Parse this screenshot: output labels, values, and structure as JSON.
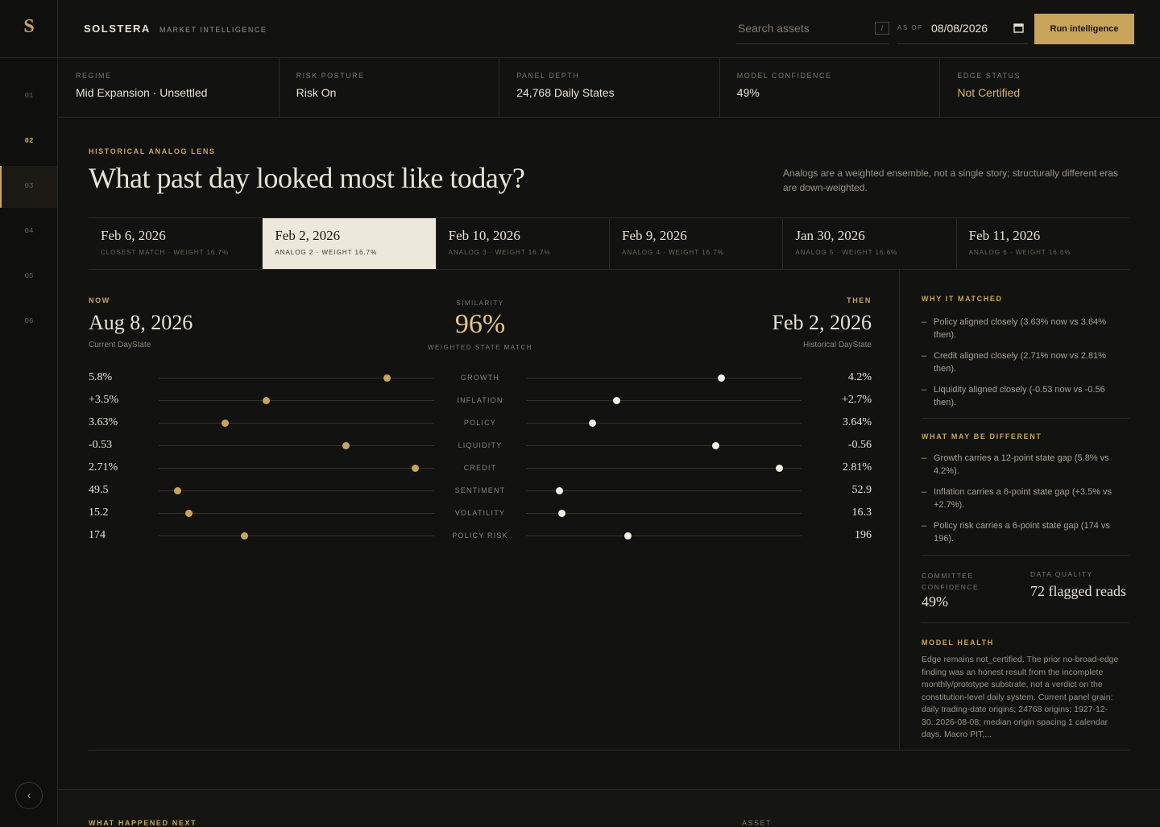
{
  "brand": {
    "logo": "S",
    "name": "SOLSTERA",
    "tagline": "MARKET INTELLIGENCE"
  },
  "header": {
    "search_placeholder": "Search assets",
    "shortcut": "/",
    "as_of_label": "AS OF",
    "as_of_date": "08/08/2026",
    "button": "Run intelligence"
  },
  "nav": {
    "items": [
      "01",
      "02",
      "03",
      "04",
      "05",
      "06"
    ],
    "active": 1,
    "collapse": "‹"
  },
  "stats": [
    {
      "label": "REGIME",
      "value": "Mid Expansion · Unsettled"
    },
    {
      "label": "RISK POSTURE",
      "value": "Risk On"
    },
    {
      "label": "PANEL DEPTH",
      "value": "24,768 Daily States"
    },
    {
      "label": "MODEL CONFIDENCE",
      "value": "49%"
    },
    {
      "label": "EDGE STATUS",
      "value": "Not Certified"
    }
  ],
  "lens": {
    "eyebrow": "HISTORICAL ANALOG LENS",
    "title": "What past day looked most like today?",
    "note": "Analogs are a weighted ensemble, not a single story; structurally different eras are down-weighted.",
    "tabs": [
      {
        "date": "Feb 6, 2026",
        "label": "CLOSEST MATCH · WEIGHT 16.7%"
      },
      {
        "date": "Feb 2, 2026",
        "label": "ANALOG 2 · WEIGHT 16.7%"
      },
      {
        "date": "Feb 10, 2026",
        "label": "ANALOG 3 · WEIGHT 16.7%"
      },
      {
        "date": "Feb 9, 2026",
        "label": "ANALOG 4 · WEIGHT 16.7%"
      },
      {
        "date": "Jan 30, 2026",
        "label": "ANALOG 5 · WEIGHT 16.6%"
      },
      {
        "date": "Feb 11, 2026",
        "label": "ANALOG 6 · WEIGHT 16.6%"
      }
    ],
    "active_tab": 1,
    "now": {
      "label": "NOW",
      "date": "Aug 8, 2026",
      "caption": "Current DayState"
    },
    "then": {
      "label": "THEN",
      "date": "Feb 2, 2026",
      "caption": "Historical DayState"
    },
    "similarity": {
      "label": "SIMILARITY",
      "value": "96%",
      "caption": "WEIGHTED STATE MATCH"
    },
    "track_range": [
      0,
      100
    ],
    "factors": [
      {
        "name": "GROWTH",
        "now": "5.8%",
        "then": "4.2%",
        "now_pos": 83,
        "then_pos": 71
      },
      {
        "name": "INFLATION",
        "now": "+3.5%",
        "then": "+2.7%",
        "now_pos": 39,
        "then_pos": 33
      },
      {
        "name": "POLICY",
        "now": "3.63%",
        "then": "3.64%",
        "now_pos": 24,
        "then_pos": 24
      },
      {
        "name": "LIQUIDITY",
        "now": "-0.53",
        "then": "-0.56",
        "now_pos": 68,
        "then_pos": 69
      },
      {
        "name": "CREDIT",
        "now": "2.71%",
        "then": "2.81%",
        "now_pos": 93,
        "then_pos": 92
      },
      {
        "name": "SENTIMENT",
        "now": "49.5",
        "then": "52.9",
        "now_pos": 7,
        "then_pos": 12
      },
      {
        "name": "VOLATILITY",
        "now": "15.2",
        "then": "16.3",
        "now_pos": 11,
        "then_pos": 13
      },
      {
        "name": "POLICY RISK",
        "now": "174",
        "then": "196",
        "now_pos": 31,
        "then_pos": 37
      }
    ]
  },
  "panel": {
    "why": {
      "title": "WHY IT MATCHED",
      "items": [
        "Policy aligned closely (3.63% now vs 3.64% then).",
        "Credit aligned closely (2.71% now vs 2.81% then).",
        "Liquidity aligned closely (-0.53 now vs -0.56 then)."
      ]
    },
    "different": {
      "title": "WHAT MAY BE DIFFERENT",
      "items": [
        "Growth carries a 12-point state gap (5.8% vs 4.2%).",
        "Inflation carries a 6-point state gap (+3.5% vs +2.7%).",
        "Policy risk carries a 6-point state gap (174 vs 196)."
      ]
    },
    "committee": {
      "label": "COMMITTEE CONFIDENCE",
      "value": "49%"
    },
    "quality": {
      "label": "DATA QUALITY",
      "value": "72 flagged reads"
    },
    "health": {
      "title": "MODEL HEALTH",
      "text": "Edge remains not_certified. The prior no-broad-edge finding was an honest result from the incomplete monthly/prototype substrate, not a verdict on the constitution-level daily system. Current panel grain: daily trading-date origins; 24768 origins; 1927-12-30..2026-08-08; median origin spacing 1 calendar days. Macro PIT,..."
    }
  },
  "next": {
    "eyebrow": "WHAT HAPPENED NEXT",
    "asset_label": "ASSET"
  }
}
